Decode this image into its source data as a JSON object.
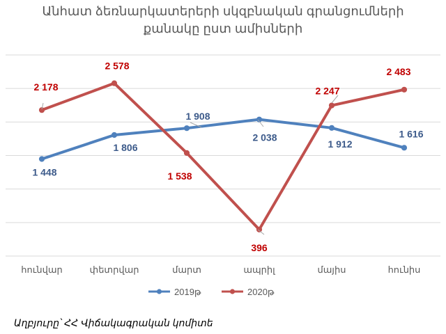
{
  "chart_data": {
    "type": "line",
    "title": [
      "Անհատ ձեռնարկատերերի սկզբնական գրանցումների",
      "քանակը ըստ ամիսների"
    ],
    "categories": [
      "հունվար",
      "փետրվար",
      "մարտ",
      "ապրիլ",
      "մայիս",
      "հունիս"
    ],
    "series": [
      {
        "name": "2019թ",
        "color": "#4f81bd",
        "label_color": "#3c5a8a",
        "values": [
          1448,
          1806,
          1908,
          2038,
          1912,
          1616
        ],
        "labels": [
          "1 448",
          "1 806",
          "1 908",
          "2 038",
          "1 912",
          "1 616"
        ]
      },
      {
        "name": "2020թ",
        "color": "#c0504d",
        "label_color": "#c00000",
        "values": [
          2178,
          2578,
          1538,
          396,
          2247,
          2483
        ],
        "labels": [
          "2 178",
          "2 578",
          "1 538",
          "396",
          "2 247",
          "2 483"
        ]
      }
    ],
    "ylim": [
      0,
      3000
    ],
    "grid": true,
    "legend": "bottom"
  },
  "source": "Աղբյուրը՝ ՀՀ Վիճակագրական կոմիտե"
}
